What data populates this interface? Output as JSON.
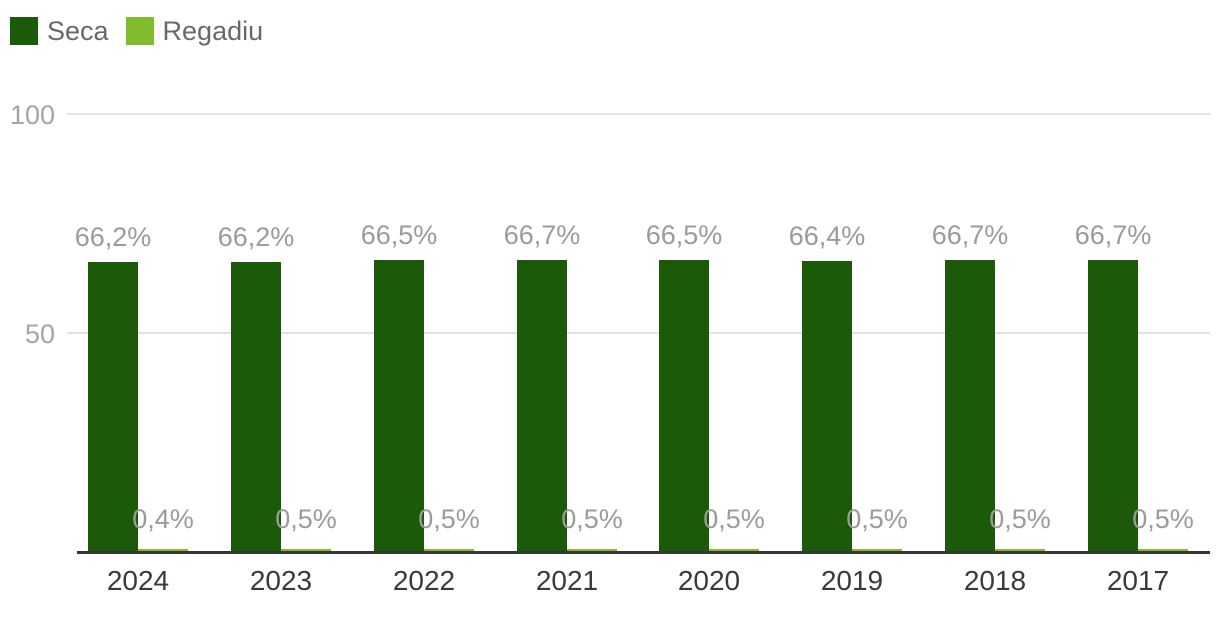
{
  "legend": {
    "items": [
      {
        "label": "Seca",
        "color": "#1a5a08"
      },
      {
        "label": "Regadiu",
        "color": "#81bc2e"
      }
    ]
  },
  "colors": {
    "seca": "#1a5a08",
    "regadiu": "#81bc2e",
    "value_label": "#9b9b9b",
    "axis_label": "#3a3a3a",
    "y_tick_label": "#a5a5a5",
    "gridline": "#e2e2e2",
    "axis_line": "#363636",
    "background": "#ffffff"
  },
  "chart_data": {
    "type": "bar",
    "title": "",
    "xlabel": "",
    "ylabel": "",
    "categories": [
      "2024",
      "2023",
      "2022",
      "2021",
      "2020",
      "2019",
      "2018",
      "2017"
    ],
    "series": [
      {
        "name": "Seca",
        "color": "#1a5a08",
        "values": [
          66.2,
          66.2,
          66.5,
          66.7,
          66.5,
          66.4,
          66.7,
          66.7
        ],
        "labels": [
          "66,2%",
          "66,2%",
          "66,5%",
          "66,7%",
          "66,5%",
          "66,4%",
          "66,7%",
          "66,7%"
        ]
      },
      {
        "name": "Regadiu",
        "color": "#81bc2e",
        "values": [
          0.4,
          0.5,
          0.5,
          0.5,
          0.5,
          0.5,
          0.5,
          0.5
        ],
        "labels": [
          "0,4%",
          "0,5%",
          "0,5%",
          "0,5%",
          "0,5%",
          "0,5%",
          "0,5%",
          "0,5%"
        ]
      }
    ],
    "y_axis": {
      "ticks": [
        {
          "value": 100,
          "label": "100"
        },
        {
          "value": 50,
          "label": "50"
        }
      ],
      "min": 0,
      "max": 100,
      "unit": "%"
    },
    "grid": true,
    "legend_position": "top-left"
  }
}
